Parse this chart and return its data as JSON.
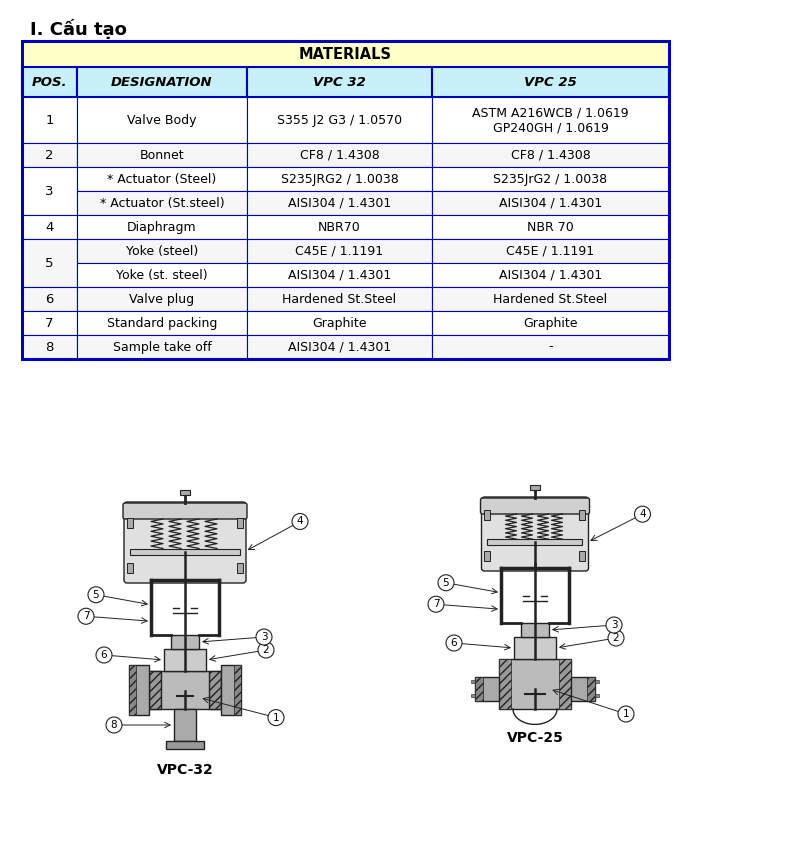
{
  "title": "I. Cấu tạo",
  "table_header": "MATERIALS",
  "col_headers": [
    "POS.",
    "DESIGNATION",
    "VPC 32",
    "VPC 25"
  ],
  "rows": [
    [
      "1",
      "Valve Body",
      "S355 J2 G3 / 1.0570",
      "ASTM A216WCB / 1.0619\nGP240GH / 1.0619"
    ],
    [
      "2",
      "Bonnet",
      "CF8 / 1.4308",
      "CF8 / 1.4308"
    ],
    [
      "3",
      "* Actuator (Steel)",
      "S235JRG2 / 1.0038",
      "S235JrG2 / 1.0038"
    ],
    [
      "3",
      "* Actuator (St.steel)",
      "AISI304 / 1.4301",
      "AISI304 / 1.4301"
    ],
    [
      "4",
      "Diaphragm",
      "NBR70",
      "NBR 70"
    ],
    [
      "5",
      "Yoke (steel)",
      "C45E / 1.1191",
      "C45E / 1.1191"
    ],
    [
      "5",
      "Yoke (st. steel)",
      "AISI304 / 1.4301",
      "AISI304 / 1.4301"
    ],
    [
      "6",
      "Valve plug",
      "Hardened St.Steel",
      "Hardened St.Steel"
    ],
    [
      "7",
      "Standard packing",
      "Graphite",
      "Graphite"
    ],
    [
      "8",
      "Sample take off",
      "AISI304 / 1.4301",
      "-"
    ]
  ],
  "header_bg": "#FFFFC8",
  "col_header_bg": "#C8F0F8",
  "border_color": "#0000BB",
  "text_color": "#000000",
  "fig_bg": "#FFFFFF",
  "vpc32_label": "VPC-32",
  "vpc25_label": "VPC-25"
}
